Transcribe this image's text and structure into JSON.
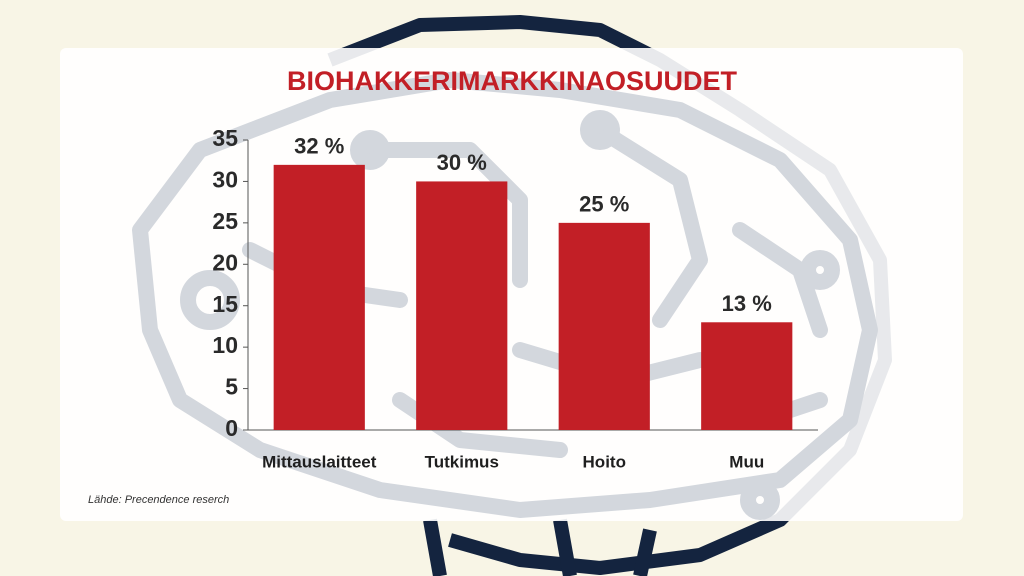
{
  "chart_data": {
    "type": "bar",
    "title": "BIOHAKKERIMARKKINAOSUUDET",
    "categories": [
      "Mittauslaitteet",
      "Tutkimus",
      "Hoito",
      "Muu"
    ],
    "values": [
      32,
      30,
      25,
      13
    ],
    "value_labels": [
      "32 %",
      "30 %",
      "25 %",
      "13 %"
    ],
    "color": "#c21f26",
    "ylim": [
      0,
      35
    ],
    "yticks": [
      0,
      5,
      10,
      15,
      20,
      25,
      30,
      35
    ],
    "grid": false,
    "source": "Lähde: Precendence reserch"
  }
}
